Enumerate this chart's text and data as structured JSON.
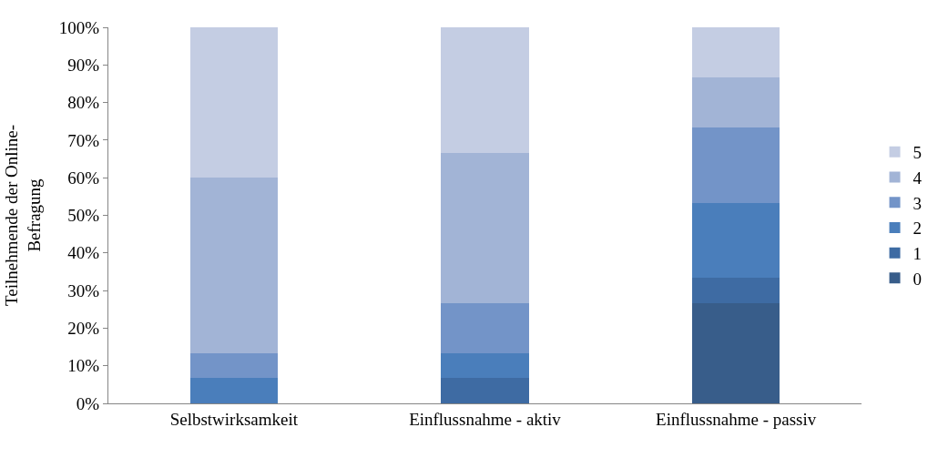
{
  "chart_data": {
    "type": "bar",
    "stacked": true,
    "ylabel": "Teilnehmende der Online-\nBefragung",
    "categories": [
      "Selbstwirksamkeit",
      "Einflussnahme - aktiv",
      "Einflussnahme - passiv"
    ],
    "series": [
      {
        "name": "0",
        "color": "#385d8a",
        "values": [
          0,
          0,
          26.7
        ]
      },
      {
        "name": "1",
        "color": "#3e6ba3",
        "values": [
          0,
          6.7,
          6.6
        ]
      },
      {
        "name": "2",
        "color": "#4a7ebb",
        "values": [
          6.7,
          6.6,
          20
        ]
      },
      {
        "name": "3",
        "color": "#7394c8",
        "values": [
          6.6,
          13.3,
          20
        ]
      },
      {
        "name": "4",
        "color": "#a2b4d6",
        "values": [
          46.7,
          40.1,
          13.4
        ]
      },
      {
        "name": "5",
        "color": "#c4cde3",
        "values": [
          40,
          33.3,
          13.3
        ]
      }
    ],
    "ylim": [
      0,
      100
    ],
    "yticks": [
      {
        "value": 0,
        "label": "0%"
      },
      {
        "value": 10,
        "label": "10%"
      },
      {
        "value": 20,
        "label": "20%"
      },
      {
        "value": 30,
        "label": "30%"
      },
      {
        "value": 40,
        "label": "40%"
      },
      {
        "value": 50,
        "label": "50%"
      },
      {
        "value": 60,
        "label": "60%"
      },
      {
        "value": 70,
        "label": "70%"
      },
      {
        "value": 80,
        "label": "80%"
      },
      {
        "value": 90,
        "label": "90%"
      },
      {
        "value": 100,
        "label": "100%"
      }
    ],
    "legend": "right"
  }
}
